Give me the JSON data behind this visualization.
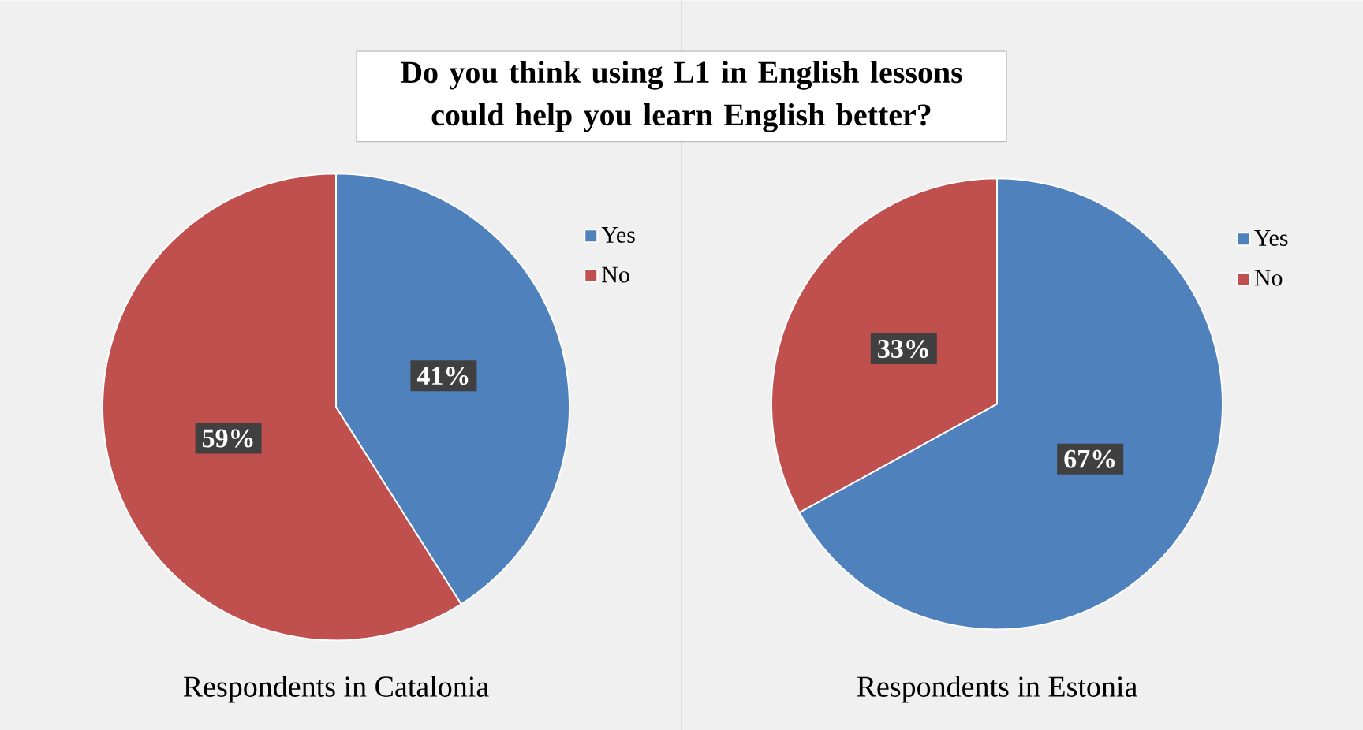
{
  "chart_data": [
    {
      "type": "pie",
      "title": "Do you think using L1 in English lessons could help you learn English better?",
      "xlabel": "Respondents in Catalonia",
      "categories": [
        "Yes",
        "No"
      ],
      "values": [
        41,
        59
      ],
      "colors": [
        "#4f81bd",
        "#c0504d"
      ],
      "value_labels": [
        "41%",
        "59%"
      ],
      "legend": "top right"
    },
    {
      "type": "pie",
      "xlabel": "Respondents in Estonia",
      "categories": [
        "Yes",
        "No"
      ],
      "values": [
        67,
        33
      ],
      "colors": [
        "#4f81bd",
        "#c0504d"
      ],
      "value_labels": [
        "67%",
        "33%"
      ],
      "legend": "top right"
    }
  ]
}
